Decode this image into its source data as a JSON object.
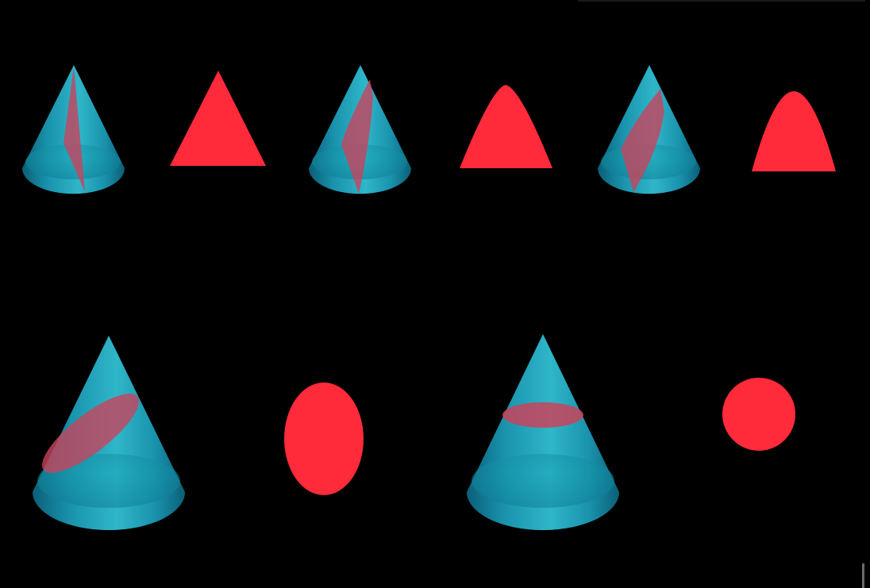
{
  "colors": {
    "background": "#000000",
    "cone_light": "#2fb6c9",
    "cone_mid": "#1a93ad",
    "cone_dark": "#0b5f78",
    "section_solid": "#ff2a3a",
    "section_on_cone": "#c8435c"
  },
  "figures": [
    {
      "cone": "small-cone",
      "cut": "vertical-through-apex",
      "section": "triangle"
    },
    {
      "cone": "small-cone",
      "cut": "vertical-offset",
      "section": "hyperbola-region"
    },
    {
      "cone": "small-cone",
      "cut": "parallel-to-slant",
      "section": "parabola-region"
    },
    {
      "cone": "large-cone",
      "cut": "oblique",
      "section": "ellipse"
    },
    {
      "cone": "large-cone",
      "cut": "horizontal",
      "section": "circle"
    }
  ]
}
